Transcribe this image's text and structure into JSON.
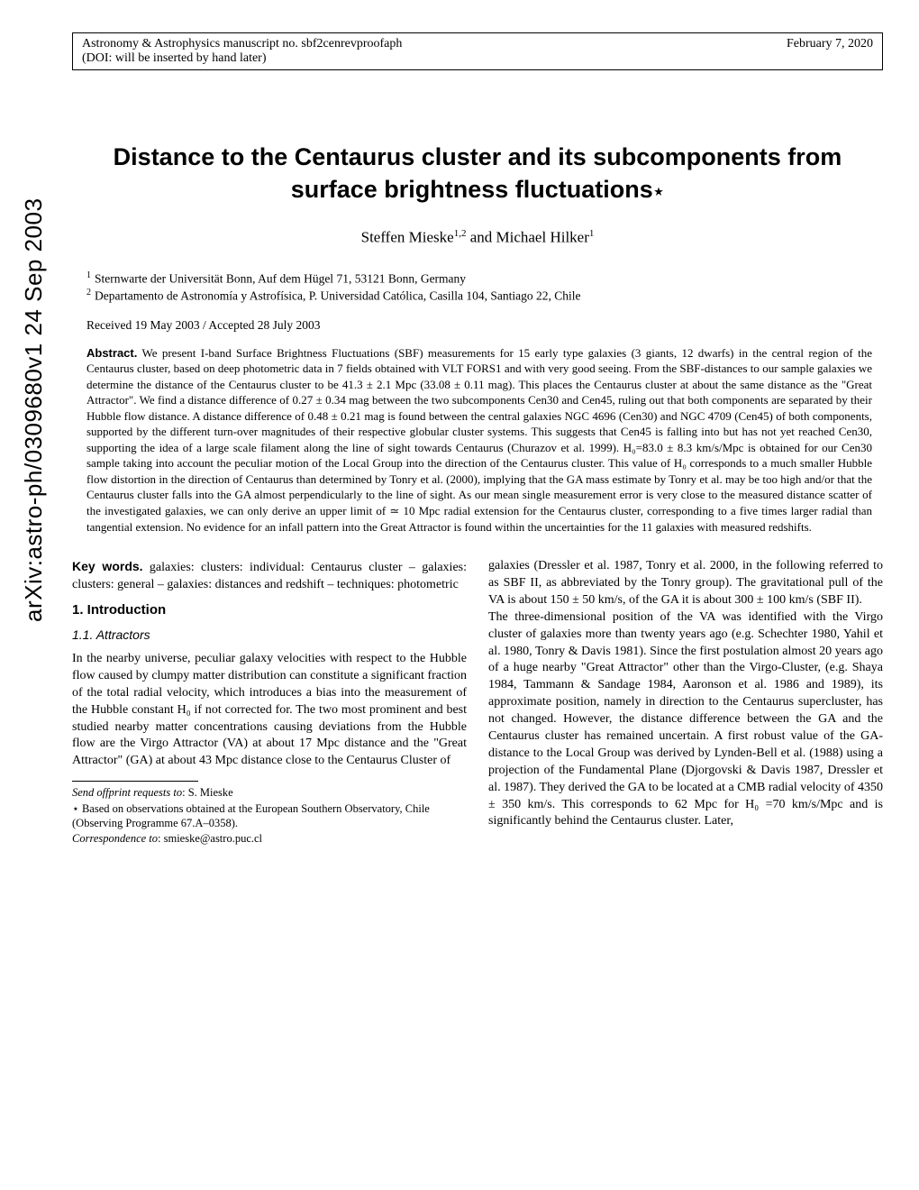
{
  "arxiv_id": "arXiv:astro-ph/0309680v1  24 Sep 2003",
  "header": {
    "left_line1": "Astronomy & Astrophysics manuscript no. sbf2cenrevproofaph",
    "left_line2": "(DOI: will be inserted by hand later)",
    "right": "February 7, 2020"
  },
  "title_line1": "Distance to the Centaurus cluster and its subcomponents from",
  "title_line2": "surface brightness fluctuations",
  "title_star": "⋆",
  "authors": "Steffen Mieske",
  "authors_sup": "1,2",
  "authors_and": " and Michael Hilker",
  "authors_sup2": "1",
  "affiliations": [
    {
      "num": "1",
      "text": "Sternwarte der Universität Bonn, Auf dem Hügel 71, 53121 Bonn, Germany"
    },
    {
      "num": "2",
      "text": "Departamento de Astronomía y Astrofísica, P. Universidad Católica, Casilla 104, Santiago 22, Chile"
    }
  ],
  "dates": "Received 19 May 2003 / Accepted 28 July 2003",
  "abstract_label": "Abstract.",
  "abstract_text": " We present I-band Surface Brightness Fluctuations (SBF) measurements for 15 early type galaxies (3 giants, 12 dwarfs) in the central region of the Centaurus cluster, based on deep photometric data in 7 fields obtained with VLT FORS1 and with very good seeing. From the SBF-distances to our sample galaxies we determine the distance of the Centaurus cluster to be 41.3 ± 2.1 Mpc (33.08 ± 0.11 mag). This places the Centaurus cluster at about the same distance as the \"Great Attractor\". We find a distance difference of 0.27 ± 0.34 mag between the two subcomponents Cen30 and Cen45, ruling out that both components are separated by their Hubble flow distance. A distance difference of 0.48 ± 0.21 mag is found between the central galaxies NGC 4696 (Cen30) and NGC 4709 (Cen45) of both components, supported by the different turn-over magnitudes of their respective globular cluster systems. This suggests that Cen45 is falling into but has not yet reached Cen30, supporting the idea of a large scale filament along the line of sight towards Centaurus (Churazov et al. 1999). H₀=83.0 ± 8.3 km/s/Mpc is obtained for our Cen30 sample taking into account the peculiar motion of the Local Group into the direction of the Centaurus cluster. This value of H₀ corresponds to a much smaller Hubble flow distortion in the direction of Centaurus than determined by Tonry et al. (2000), implying that the GA mass estimate by Tonry et al. may be too high and/or that the Centaurus cluster falls into the GA almost perpendicularly to the line of sight. As our mean single measurement error is very close to the measured distance scatter of the investigated galaxies, we can only derive an upper limit of ≃ 10 Mpc radial extension for the Centaurus cluster, corresponding to a five times larger radial than tangential extension. No evidence for an infall pattern into the Great Attractor is found within the uncertainties for the 11 galaxies with measured redshifts.",
  "keywords_label": "Key words.",
  "keywords_text": " galaxies: clusters: individual: Centaurus cluster – galaxies: clusters: general – galaxies: distances and redshift – techniques: photometric",
  "section1": "1. Introduction",
  "section11": "1.1. Attractors",
  "col1_p1": "In the nearby universe, peculiar galaxy velocities with respect to the Hubble flow caused by clumpy matter distribution can constitute a significant fraction of the total radial velocity, which introduces a bias into the measurement of the Hubble constant H₀ if not corrected for. The two most prominent and best studied nearby matter concentrations causing deviations from the Hubble flow are the Virgo Attractor (VA) at about 17 Mpc distance and the \"Great Attractor\" (GA) at about 43 Mpc distance close to the Centaurus Cluster of",
  "footnotes": {
    "offprint_label": "Send offprint requests to",
    "offprint_name": ": S. Mieske",
    "star_note": "⋆ Based on observations obtained at the European Southern Observatory, Chile (Observing Programme 67.A–0358).",
    "corr_label": "Correspondence to",
    "corr_text": ": smieske@astro.puc.cl"
  },
  "col2_p1": "galaxies (Dressler et al. 1987, Tonry et al. 2000, in the following referred to as SBF II, as abbreviated by the Tonry group). The gravitational pull of the VA is about 150 ± 50 km/s, of the GA it is about 300 ± 100 km/s (SBF II).",
  "col2_p2": "The three-dimensional position of the VA was identified with the Virgo cluster of galaxies more than twenty years ago (e.g. Schechter 1980, Yahil et al. 1980, Tonry & Davis 1981). Since the first postulation almost 20 years ago of a huge nearby \"Great Attractor\" other than the Virgo-Cluster, (e.g. Shaya 1984, Tammann & Sandage 1984, Aaronson et al. 1986 and 1989), its approximate position, namely in direction to the Centaurus supercluster, has not changed. However, the distance difference between the GA and the Centaurus cluster has remained uncertain. A first robust value of the GA-distance to the Local Group was derived by Lynden-Bell et al. (1988) using a projection of the Fundamental Plane (Djorgovski & Davis 1987, Dressler et al. 1987). They derived the GA to be located at a CMB radial velocity of 4350 ± 350 km/s. This corresponds to 62 Mpc for H₀ =70 km/s/Mpc and is significantly behind the Centaurus cluster. Later,"
}
